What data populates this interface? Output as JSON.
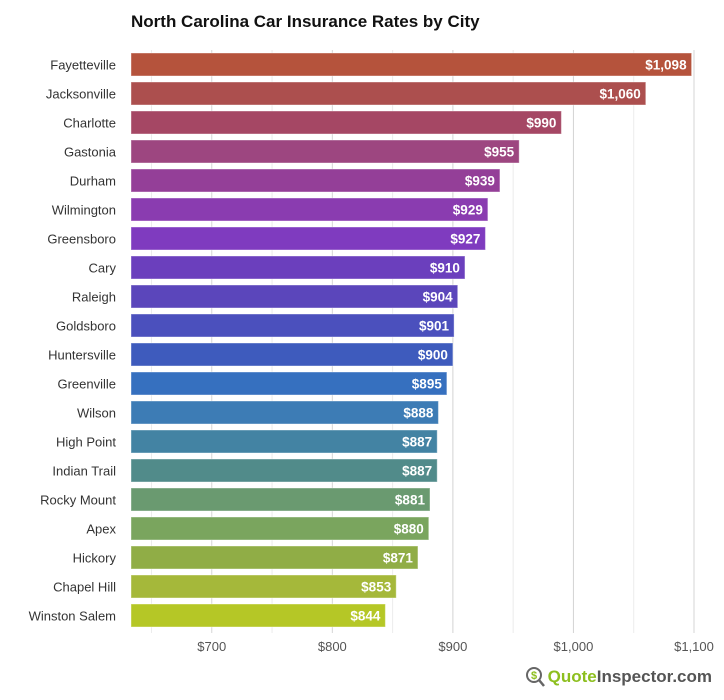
{
  "chart_data": {
    "type": "bar",
    "orientation": "horizontal",
    "title": "North Carolina Car Insurance Rates by City",
    "categories": [
      "Fayetteville",
      "Jacksonville",
      "Charlotte",
      "Gastonia",
      "Durham",
      "Wilmington",
      "Greensboro",
      "Cary",
      "Raleigh",
      "Goldsboro",
      "Huntersville",
      "Greenville",
      "Wilson",
      "High Point",
      "Indian Trail",
      "Rocky Mount",
      "Apex",
      "Hickory",
      "Chapel Hill",
      "Winston Salem"
    ],
    "values": [
      1098,
      1060,
      990,
      955,
      939,
      929,
      927,
      910,
      904,
      901,
      900,
      895,
      888,
      887,
      887,
      881,
      880,
      871,
      853,
      844
    ],
    "data_labels": [
      "$1,098",
      "$1,060",
      "$990",
      "$955",
      "$939",
      "$929",
      "$927",
      "$910",
      "$904",
      "$901",
      "$900",
      "$895",
      "$888",
      "$887",
      "$887",
      "$881",
      "$880",
      "$871",
      "$853",
      "$844"
    ],
    "colors": [
      "#b5533c",
      "#ac4f4e",
      "#a54764",
      "#9d4680",
      "#943f98",
      "#8a3cb0",
      "#7f3bbf",
      "#6b3fbd",
      "#5b46bb",
      "#4b50bd",
      "#3e5bbd",
      "#3670bf",
      "#3d7cb5",
      "#4383a3",
      "#518b8a",
      "#6a9a70",
      "#7aa55e",
      "#90ad46",
      "#a5b83a",
      "#b5c726"
    ],
    "xlim": [
      633,
      1100
    ],
    "xticks": [
      700,
      800,
      900,
      1000,
      1100
    ],
    "xtick_labels": [
      "$700",
      "$800",
      "$900",
      "$1,000",
      "$1,100"
    ],
    "grid": true,
    "xlabel": "",
    "ylabel": ""
  },
  "logo": {
    "part1": "Quote",
    "part2": "Inspector.com"
  }
}
